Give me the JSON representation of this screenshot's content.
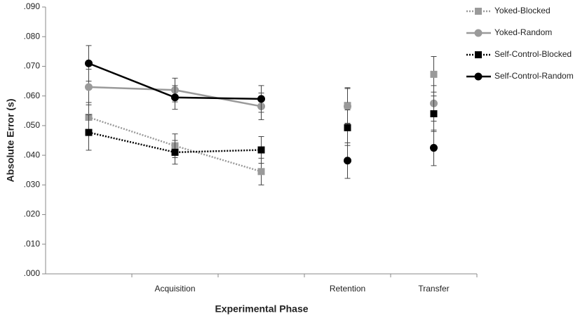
{
  "chart_data": {
    "type": "line",
    "y_label": "Absolute Error (s)",
    "x_label": "Experimental Phase",
    "categories": [
      null,
      "Acquisition",
      null,
      "Retention",
      "Transfer"
    ],
    "connected_points": 3,
    "ylim": [
      0,
      0.09
    ],
    "yticks": [
      {
        "value": 0,
        "label": ".000"
      },
      {
        "value": 0.01,
        "label": ".010"
      },
      {
        "value": 0.02,
        "label": ".020"
      },
      {
        "value": 0.03,
        "label": ".030"
      },
      {
        "value": 0.04,
        "label": ".040"
      },
      {
        "value": 0.05,
        "label": ".050"
      },
      {
        "value": 0.06,
        "label": ".060"
      },
      {
        "value": 0.07,
        "label": ".070"
      },
      {
        "value": 0.08,
        "label": ".080"
      },
      {
        "value": 0.09,
        "label": ".090"
      }
    ],
    "legend": "right",
    "series": [
      {
        "name": "Yoked-Blocked",
        "color": "#9a9a9a",
        "marker": "square",
        "dash": "dotted",
        "values": [
          0.0528,
          0.0432,
          0.0345,
          0.0568,
          0.0673
        ],
        "errors": [
          0.005,
          0.004,
          0.0045,
          0.006,
          0.006
        ]
      },
      {
        "name": "Yoked-Random",
        "color": "#9a9a9a",
        "marker": "circle",
        "dash": "solid",
        "values": [
          0.063,
          0.062,
          0.0565,
          0.0565,
          0.0575
        ],
        "errors": [
          0.006,
          0.004,
          0.0045,
          0.006,
          0.006
        ]
      },
      {
        "name": "Self-Control-Blocked",
        "color": "#000000",
        "marker": "square",
        "dash": "dotted",
        "values": [
          0.0477,
          0.041,
          0.0418,
          0.0493,
          0.054
        ],
        "errors": [
          0.006,
          0.004,
          0.0045,
          0.006,
          0.006
        ]
      },
      {
        "name": "Self-Control-Random",
        "color": "#000000",
        "marker": "circle",
        "dash": "solid",
        "values": [
          0.071,
          0.0595,
          0.059,
          0.0382,
          0.0425
        ],
        "errors": [
          0.006,
          0.004,
          0.0045,
          0.006,
          0.006
        ]
      }
    ]
  }
}
